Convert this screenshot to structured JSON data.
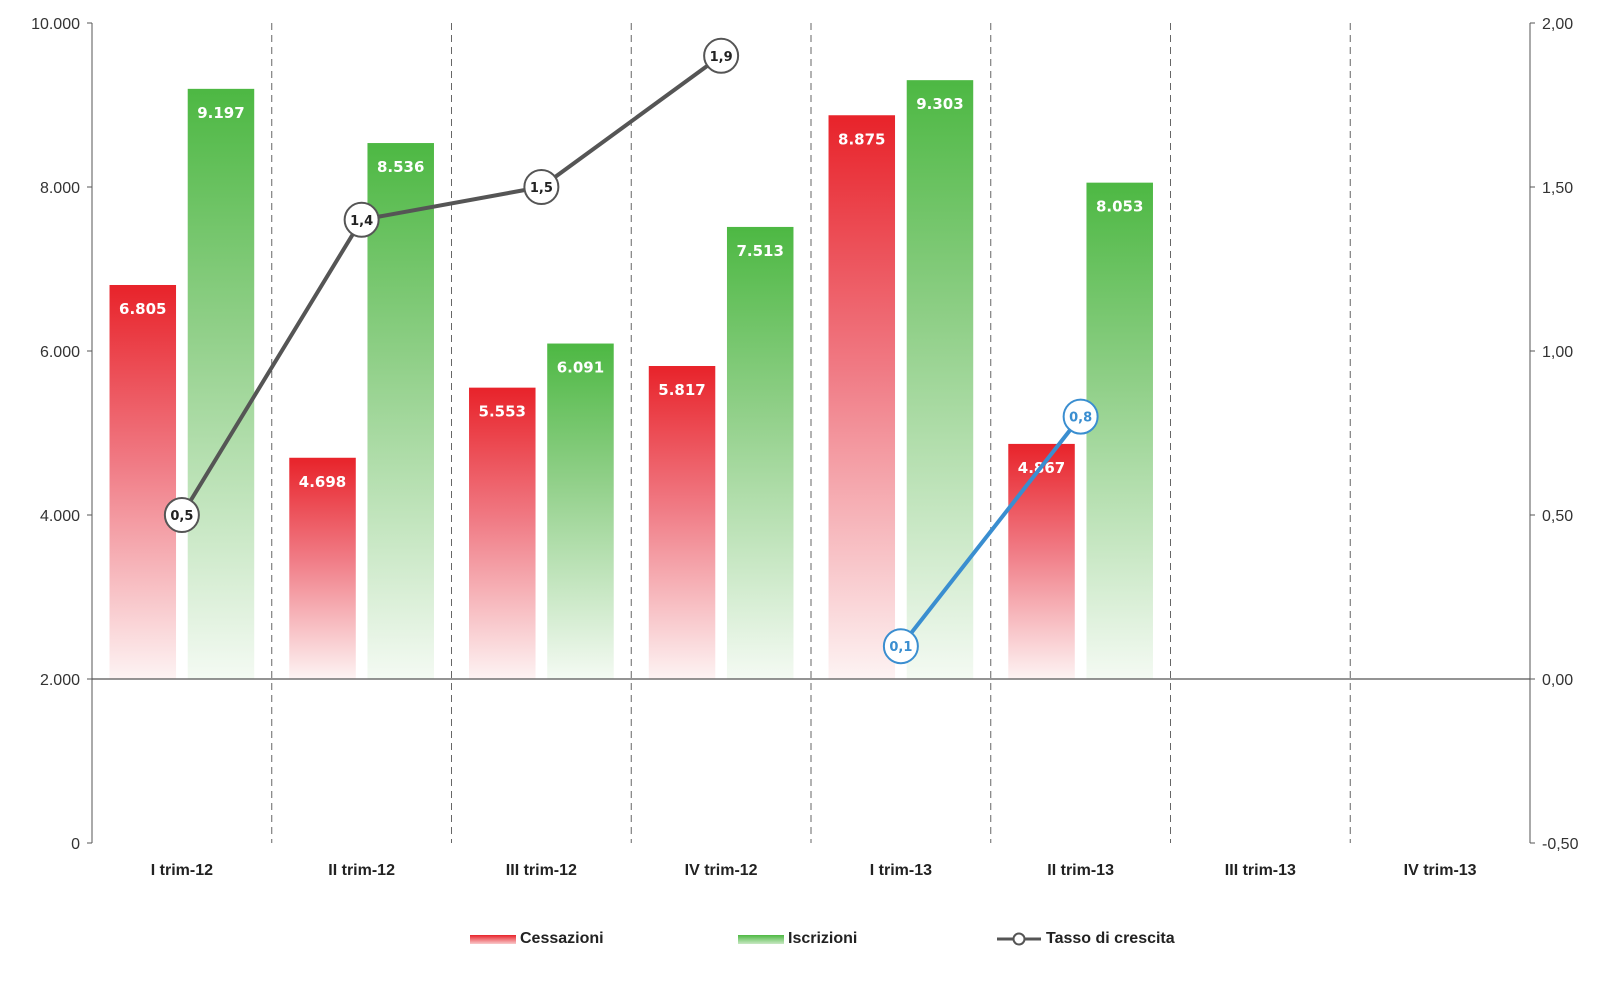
{
  "chart_data": {
    "type": "bar",
    "title": "",
    "categories": [
      "I trim-12",
      "II trim-12",
      "III trim-12",
      "IV trim-12",
      "I trim-13",
      "II trim-13",
      "III trim-13",
      "IV trim-13"
    ],
    "series": [
      {
        "name": "Cessazioni",
        "type": "bar",
        "axis": "left",
        "color": "#e8232a",
        "values": [
          6805,
          4698,
          5553,
          5817,
          8875,
          4867,
          null,
          null
        ],
        "labels": [
          "6.805",
          "4.698",
          "5.553",
          "5.817",
          "8.875",
          "4.867",
          "",
          ""
        ]
      },
      {
        "name": "Iscrizioni",
        "type": "bar",
        "axis": "left",
        "color": "#4db843",
        "values": [
          9197,
          8536,
          6091,
          7513,
          9303,
          8053,
          null,
          null
        ],
        "labels": [
          "9.197",
          "8.536",
          "6.091",
          "7.513",
          "9.303",
          "8.053",
          "",
          ""
        ]
      },
      {
        "name": "Tasso di crescita",
        "type": "line",
        "axis": "right",
        "color": "#555555",
        "points": [
          {
            "x": "I trim-12",
            "y": 0.5,
            "label": "0,5"
          },
          {
            "x": "II trim-12",
            "y": 1.4,
            "label": "1,4"
          },
          {
            "x": "III trim-12",
            "y": 1.5,
            "label": "1,5"
          },
          {
            "x": "IV trim-12",
            "y": 1.9,
            "label": "1,9"
          }
        ]
      },
      {
        "name": "",
        "type": "line",
        "axis": "right",
        "color": "#3a8ed0",
        "points": [
          {
            "x": "I trim-13",
            "y": 0.1,
            "label": "0,1"
          },
          {
            "x": "II trim-13",
            "y": 0.8,
            "label": "0,8"
          }
        ]
      }
    ],
    "y_left": {
      "min": 0,
      "max": 10000,
      "ticks": [
        0,
        2000,
        4000,
        6000,
        8000,
        10000
      ],
      "tick_labels": [
        "0",
        "2.000",
        "4.000",
        "6.000",
        "8.000",
        "10.000"
      ],
      "baseline": 2000
    },
    "y_right": {
      "min": -0.5,
      "max": 2.0,
      "ticks": [
        -0.5,
        0,
        0.5,
        1.0,
        1.5,
        2.0
      ],
      "tick_labels": [
        "-0,50",
        "0,00",
        "0,50",
        "1,00",
        "1,50",
        "2,00"
      ]
    },
    "xlabel": "",
    "ylabel": "",
    "grid": "dashed vertical separators between categories",
    "legend": {
      "position": "bottom-center"
    }
  }
}
